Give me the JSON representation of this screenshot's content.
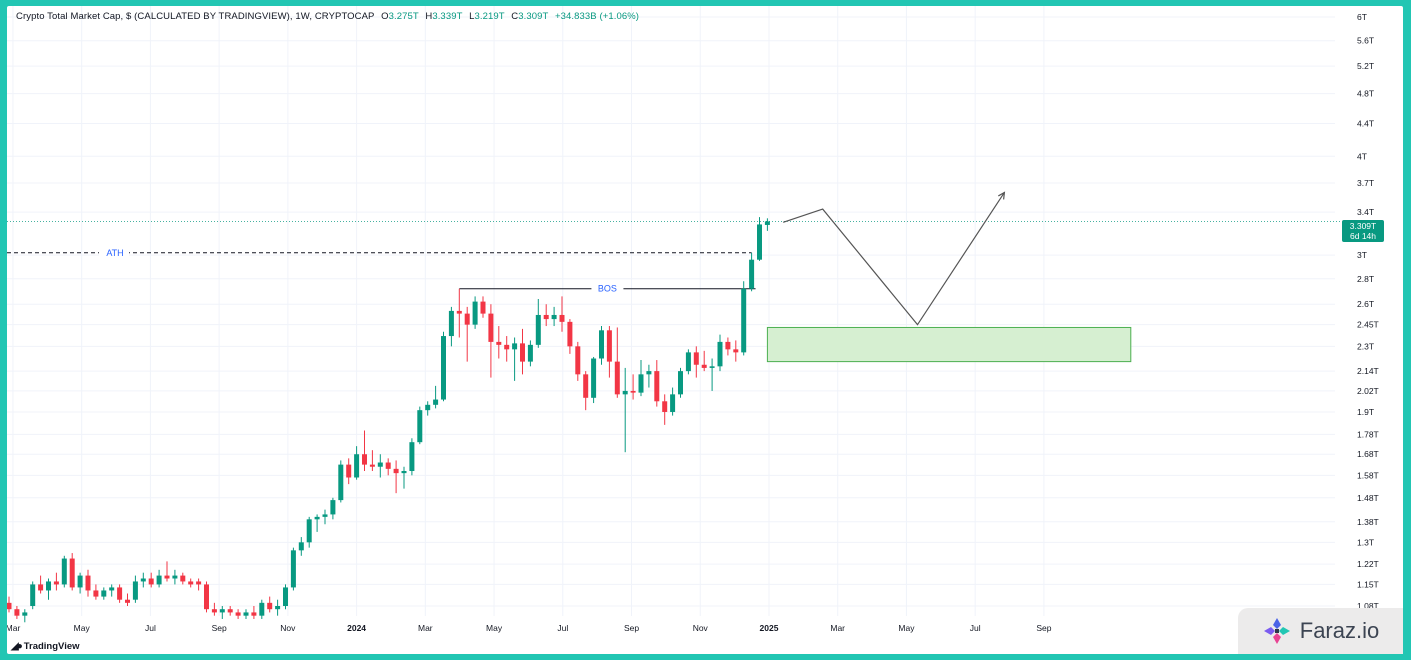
{
  "header": {
    "symbol": "Crypto Total Market Cap, $ (CALCULATED BY TRADINGVIEW), 1W, CRYPTOCAP",
    "ohlc": [
      {
        "k": "O",
        "v": "3.275T"
      },
      {
        "k": "H",
        "v": "3.339T"
      },
      {
        "k": "L",
        "v": "3.219T"
      },
      {
        "k": "C",
        "v": "3.309T"
      },
      {
        "k": "",
        "v": "+34.833B (+1.06%)"
      }
    ]
  },
  "price_badge": {
    "price": "3.309T",
    "countdown": "6d 14h"
  },
  "footer": {
    "tradingview_logo": "TradingView"
  },
  "watermark": {
    "text": "Faraz.io"
  },
  "colors": {
    "up": "#089981",
    "down": "#f23645",
    "grid": "#f0f3fa",
    "annotation": "#2962ff",
    "zone_fill": "#d6efd1",
    "zone_border": "#4caf50",
    "frame": "#22c6b3"
  },
  "chart_data": {
    "type": "candlestick",
    "title": "Crypto Total Market Cap, $ (CALCULATED BY TRADINGVIEW), 1W, CRYPTOCAP",
    "y_scale": "log",
    "grid": true,
    "x_ticks": [
      "Mar",
      "May",
      "Jul",
      "Sep",
      "Nov",
      "2024",
      "Mar",
      "May",
      "Jul",
      "Sep",
      "Nov",
      "2025",
      "Mar",
      "May",
      "Jul",
      "Sep"
    ],
    "y_ticks": [
      {
        "label": "6T",
        "value": 6.0
      },
      {
        "label": "5.6T",
        "value": 5.6
      },
      {
        "label": "5.2T",
        "value": 5.2
      },
      {
        "label": "4.8T",
        "value": 4.8
      },
      {
        "label": "4.4T",
        "value": 4.4
      },
      {
        "label": "4T",
        "value": 4.0
      },
      {
        "label": "3.7T",
        "value": 3.7
      },
      {
        "label": "3.4T",
        "value": 3.4
      },
      {
        "label": "3T",
        "value": 3.0
      },
      {
        "label": "2.8T",
        "value": 2.8
      },
      {
        "label": "2.6T",
        "value": 2.6
      },
      {
        "label": "2.45T",
        "value": 2.45
      },
      {
        "label": "2.3T",
        "value": 2.3
      },
      {
        "label": "2.14T",
        "value": 2.14
      },
      {
        "label": "2.02T",
        "value": 2.02
      },
      {
        "label": "1.9T",
        "value": 1.9
      },
      {
        "label": "1.78T",
        "value": 1.78
      },
      {
        "label": "1.68T",
        "value": 1.68
      },
      {
        "label": "1.58T",
        "value": 1.58
      },
      {
        "label": "1.48T",
        "value": 1.48
      },
      {
        "label": "1.38T",
        "value": 1.38
      },
      {
        "label": "1.3T",
        "value": 1.3
      },
      {
        "label": "1.22T",
        "value": 1.22
      },
      {
        "label": "1.15T",
        "value": 1.15
      },
      {
        "label": "1.08T",
        "value": 1.08
      }
    ],
    "annotations": {
      "ath_label": "ATH",
      "ath_value": 3.02,
      "bos_label": "BOS",
      "bos_value": 2.72
    },
    "demand_zone": {
      "from_week": 96,
      "to_week": 142,
      "low": 2.2,
      "high": 2.43
    },
    "projection_path": [
      {
        "week": 98,
        "value": 3.3
      },
      {
        "week": 103,
        "value": 3.43
      },
      {
        "week": 115,
        "value": 2.45
      },
      {
        "week": 126,
        "value": 3.6
      }
    ],
    "last_price": 3.309,
    "candles": [
      {
        "o": 1.09,
        "h": 1.11,
        "l": 1.06,
        "c": 1.07
      },
      {
        "o": 1.07,
        "h": 1.08,
        "l": 1.04,
        "c": 1.05
      },
      {
        "o": 1.05,
        "h": 1.07,
        "l": 1.03,
        "c": 1.06
      },
      {
        "o": 1.08,
        "h": 1.16,
        "l": 1.07,
        "c": 1.15
      },
      {
        "o": 1.15,
        "h": 1.18,
        "l": 1.12,
        "c": 1.13
      },
      {
        "o": 1.13,
        "h": 1.17,
        "l": 1.1,
        "c": 1.16
      },
      {
        "o": 1.16,
        "h": 1.19,
        "l": 1.13,
        "c": 1.15
      },
      {
        "o": 1.15,
        "h": 1.25,
        "l": 1.14,
        "c": 1.24
      },
      {
        "o": 1.24,
        "h": 1.26,
        "l": 1.13,
        "c": 1.14
      },
      {
        "o": 1.14,
        "h": 1.19,
        "l": 1.12,
        "c": 1.18
      },
      {
        "o": 1.18,
        "h": 1.2,
        "l": 1.11,
        "c": 1.13
      },
      {
        "o": 1.13,
        "h": 1.15,
        "l": 1.1,
        "c": 1.11
      },
      {
        "o": 1.11,
        "h": 1.14,
        "l": 1.1,
        "c": 1.13
      },
      {
        "o": 1.13,
        "h": 1.15,
        "l": 1.11,
        "c": 1.14
      },
      {
        "o": 1.14,
        "h": 1.15,
        "l": 1.09,
        "c": 1.1
      },
      {
        "o": 1.1,
        "h": 1.12,
        "l": 1.08,
        "c": 1.09
      },
      {
        "o": 1.1,
        "h": 1.18,
        "l": 1.09,
        "c": 1.16
      },
      {
        "o": 1.16,
        "h": 1.19,
        "l": 1.14,
        "c": 1.17
      },
      {
        "o": 1.17,
        "h": 1.19,
        "l": 1.14,
        "c": 1.15
      },
      {
        "o": 1.15,
        "h": 1.2,
        "l": 1.14,
        "c": 1.18
      },
      {
        "o": 1.18,
        "h": 1.23,
        "l": 1.16,
        "c": 1.17
      },
      {
        "o": 1.17,
        "h": 1.2,
        "l": 1.15,
        "c": 1.18
      },
      {
        "o": 1.18,
        "h": 1.19,
        "l": 1.15,
        "c": 1.16
      },
      {
        "o": 1.16,
        "h": 1.17,
        "l": 1.14,
        "c": 1.15
      },
      {
        "o": 1.16,
        "h": 1.17,
        "l": 1.13,
        "c": 1.15
      },
      {
        "o": 1.15,
        "h": 1.16,
        "l": 1.06,
        "c": 1.07
      },
      {
        "o": 1.07,
        "h": 1.09,
        "l": 1.05,
        "c": 1.06
      },
      {
        "o": 1.06,
        "h": 1.08,
        "l": 1.04,
        "c": 1.07
      },
      {
        "o": 1.07,
        "h": 1.08,
        "l": 1.05,
        "c": 1.06
      },
      {
        "o": 1.06,
        "h": 1.07,
        "l": 1.04,
        "c": 1.05
      },
      {
        "o": 1.05,
        "h": 1.07,
        "l": 1.04,
        "c": 1.06
      },
      {
        "o": 1.06,
        "h": 1.08,
        "l": 1.04,
        "c": 1.05
      },
      {
        "o": 1.05,
        "h": 1.1,
        "l": 1.04,
        "c": 1.09
      },
      {
        "o": 1.09,
        "h": 1.11,
        "l": 1.06,
        "c": 1.07
      },
      {
        "o": 1.07,
        "h": 1.1,
        "l": 1.05,
        "c": 1.08
      },
      {
        "o": 1.08,
        "h": 1.15,
        "l": 1.07,
        "c": 1.14
      },
      {
        "o": 1.14,
        "h": 1.28,
        "l": 1.13,
        "c": 1.27
      },
      {
        "o": 1.27,
        "h": 1.32,
        "l": 1.25,
        "c": 1.3
      },
      {
        "o": 1.3,
        "h": 1.4,
        "l": 1.28,
        "c": 1.39
      },
      {
        "o": 1.39,
        "h": 1.41,
        "l": 1.34,
        "c": 1.4
      },
      {
        "o": 1.4,
        "h": 1.43,
        "l": 1.37,
        "c": 1.41
      },
      {
        "o": 1.41,
        "h": 1.48,
        "l": 1.39,
        "c": 1.47
      },
      {
        "o": 1.47,
        "h": 1.65,
        "l": 1.46,
        "c": 1.63
      },
      {
        "o": 1.63,
        "h": 1.66,
        "l": 1.54,
        "c": 1.57
      },
      {
        "o": 1.57,
        "h": 1.72,
        "l": 1.56,
        "c": 1.68
      },
      {
        "o": 1.68,
        "h": 1.8,
        "l": 1.6,
        "c": 1.63
      },
      {
        "o": 1.63,
        "h": 1.7,
        "l": 1.6,
        "c": 1.62
      },
      {
        "o": 1.62,
        "h": 1.68,
        "l": 1.57,
        "c": 1.64
      },
      {
        "o": 1.64,
        "h": 1.66,
        "l": 1.58,
        "c": 1.61
      },
      {
        "o": 1.61,
        "h": 1.65,
        "l": 1.5,
        "c": 1.59
      },
      {
        "o": 1.59,
        "h": 1.62,
        "l": 1.52,
        "c": 1.6
      },
      {
        "o": 1.6,
        "h": 1.76,
        "l": 1.58,
        "c": 1.74
      },
      {
        "o": 1.74,
        "h": 1.93,
        "l": 1.73,
        "c": 1.91
      },
      {
        "o": 1.91,
        "h": 1.96,
        "l": 1.88,
        "c": 1.94
      },
      {
        "o": 1.94,
        "h": 2.05,
        "l": 1.92,
        "c": 1.97
      },
      {
        "o": 1.97,
        "h": 2.4,
        "l": 1.96,
        "c": 2.37
      },
      {
        "o": 2.37,
        "h": 2.58,
        "l": 2.3,
        "c": 2.55
      },
      {
        "o": 2.55,
        "h": 2.72,
        "l": 2.36,
        "c": 2.53
      },
      {
        "o": 2.53,
        "h": 2.58,
        "l": 2.2,
        "c": 2.45
      },
      {
        "o": 2.45,
        "h": 2.66,
        "l": 2.42,
        "c": 2.62
      },
      {
        "o": 2.62,
        "h": 2.66,
        "l": 2.5,
        "c": 2.53
      },
      {
        "o": 2.53,
        "h": 2.6,
        "l": 2.1,
        "c": 2.33
      },
      {
        "o": 2.33,
        "h": 2.44,
        "l": 2.22,
        "c": 2.31
      },
      {
        "o": 2.31,
        "h": 2.37,
        "l": 2.2,
        "c": 2.28
      },
      {
        "o": 2.28,
        "h": 2.36,
        "l": 2.08,
        "c": 2.32
      },
      {
        "o": 2.32,
        "h": 2.42,
        "l": 2.12,
        "c": 2.2
      },
      {
        "o": 2.2,
        "h": 2.34,
        "l": 2.17,
        "c": 2.31
      },
      {
        "o": 2.31,
        "h": 2.64,
        "l": 2.29,
        "c": 2.52
      },
      {
        "o": 2.52,
        "h": 2.6,
        "l": 2.44,
        "c": 2.49
      },
      {
        "o": 2.49,
        "h": 2.58,
        "l": 2.44,
        "c": 2.52
      },
      {
        "o": 2.52,
        "h": 2.66,
        "l": 2.4,
        "c": 2.47
      },
      {
        "o": 2.47,
        "h": 2.49,
        "l": 2.25,
        "c": 2.3
      },
      {
        "o": 2.3,
        "h": 2.33,
        "l": 2.08,
        "c": 2.12
      },
      {
        "o": 2.12,
        "h": 2.14,
        "l": 1.91,
        "c": 1.98
      },
      {
        "o": 1.98,
        "h": 2.23,
        "l": 1.95,
        "c": 2.22
      },
      {
        "o": 2.22,
        "h": 2.44,
        "l": 2.18,
        "c": 2.41
      },
      {
        "o": 2.41,
        "h": 2.44,
        "l": 2.1,
        "c": 2.2
      },
      {
        "o": 2.2,
        "h": 2.43,
        "l": 1.98,
        "c": 2.0
      },
      {
        "o": 2.0,
        "h": 2.16,
        "l": 1.69,
        "c": 2.02
      },
      {
        "o": 2.02,
        "h": 2.12,
        "l": 1.97,
        "c": 2.01
      },
      {
        "o": 2.01,
        "h": 2.21,
        "l": 1.99,
        "c": 2.12
      },
      {
        "o": 2.12,
        "h": 2.18,
        "l": 2.04,
        "c": 2.14
      },
      {
        "o": 2.14,
        "h": 2.21,
        "l": 1.93,
        "c": 1.96
      },
      {
        "o": 1.96,
        "h": 2.0,
        "l": 1.83,
        "c": 1.9
      },
      {
        "o": 1.9,
        "h": 2.04,
        "l": 1.88,
        "c": 2.0
      },
      {
        "o": 2.0,
        "h": 2.16,
        "l": 1.98,
        "c": 2.14
      },
      {
        "o": 2.14,
        "h": 2.28,
        "l": 2.12,
        "c": 2.26
      },
      {
        "o": 2.26,
        "h": 2.3,
        "l": 2.1,
        "c": 2.18
      },
      {
        "o": 2.18,
        "h": 2.27,
        "l": 2.14,
        "c": 2.16
      },
      {
        "o": 2.16,
        "h": 2.22,
        "l": 2.02,
        "c": 2.17
      },
      {
        "o": 2.17,
        "h": 2.38,
        "l": 2.14,
        "c": 2.33
      },
      {
        "o": 2.33,
        "h": 2.36,
        "l": 2.24,
        "c": 2.28
      },
      {
        "o": 2.28,
        "h": 2.34,
        "l": 2.2,
        "c": 2.26
      },
      {
        "o": 2.26,
        "h": 2.78,
        "l": 2.24,
        "c": 2.72
      },
      {
        "o": 2.72,
        "h": 3.02,
        "l": 2.7,
        "c": 2.96
      },
      {
        "o": 2.96,
        "h": 3.35,
        "l": 2.95,
        "c": 3.28
      },
      {
        "o": 3.275,
        "h": 3.339,
        "l": 3.219,
        "c": 3.309
      }
    ]
  }
}
